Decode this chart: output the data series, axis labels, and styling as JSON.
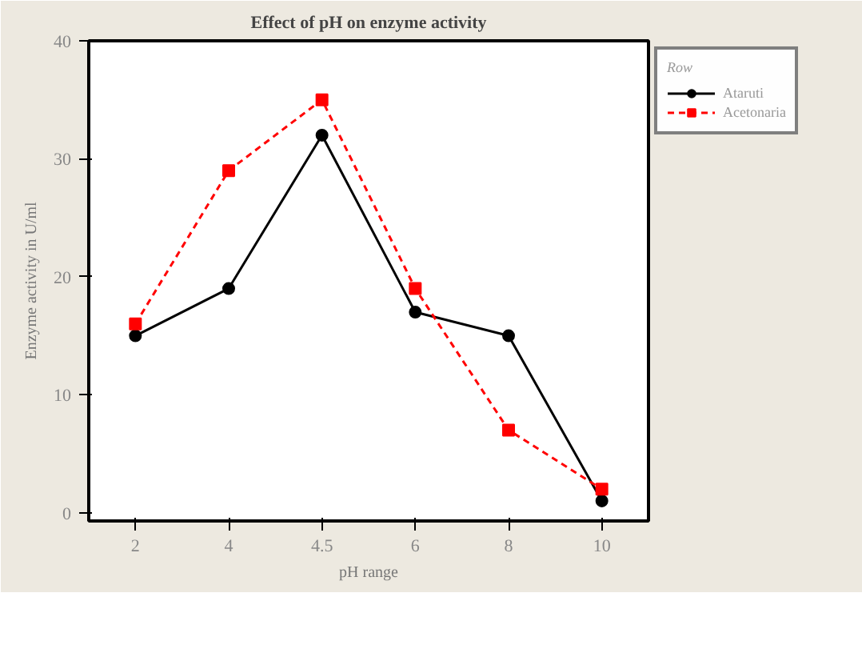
{
  "chart_data": {
    "type": "line",
    "title": "Effect of pH on enzyme activity",
    "xlabel": "pH range",
    "ylabel": "Enzyme activity in U/ml",
    "legend_title": "Row",
    "categories": [
      "2",
      "4",
      "4.5",
      "6",
      "8",
      "10"
    ],
    "series": [
      {
        "name": "Ataruti",
        "color": "#000000",
        "marker": "circle",
        "line_style": "solid",
        "values": [
          15,
          19,
          32,
          17,
          15,
          1
        ]
      },
      {
        "name": "Acetonaria",
        "color": "#ff0000",
        "marker": "square",
        "line_style": "dashed",
        "values": [
          16,
          29,
          35,
          19,
          7,
          2
        ]
      }
    ],
    "ylim": [
      -0.7,
      40
    ],
    "yticks": [
      0,
      10,
      20,
      30,
      40
    ],
    "legend": "right"
  }
}
